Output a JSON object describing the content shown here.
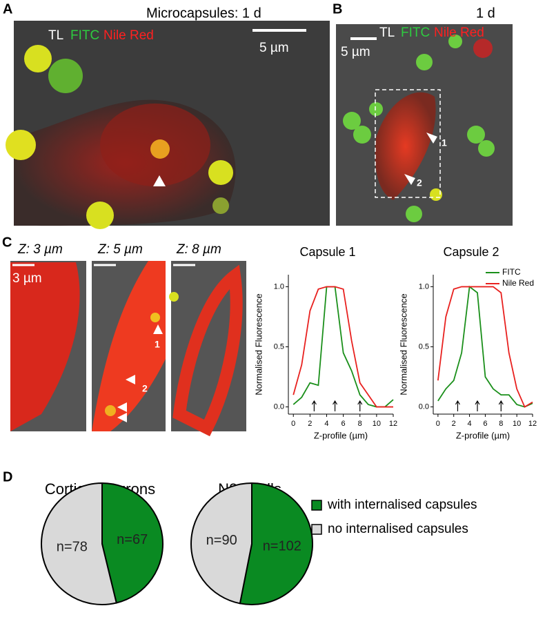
{
  "panels": {
    "A": {
      "letter": "A",
      "title": "Microcapsules: 1 d",
      "channels": [
        "TL",
        "FITC",
        "Nile Red"
      ],
      "scale": "5 µm"
    },
    "B": {
      "letter": "B",
      "title": "1 d",
      "channels": [
        "TL",
        "FITC",
        "Nile Red"
      ],
      "scale": "5 µm",
      "markers": [
        "1",
        "2"
      ]
    },
    "C": {
      "letter": "C",
      "slices": [
        "Z: 3 µm",
        "Z: 5 µm",
        "Z: 8 µm"
      ],
      "scale": "3 µm",
      "markers": [
        "1",
        "2"
      ]
    },
    "D": {
      "letter": "D"
    }
  },
  "chart_data": [
    {
      "type": "line",
      "title": "Capsule 1",
      "x_label": "Z-profile (µm)",
      "y_label": "Normalised Fluorescence",
      "x": [
        0,
        1,
        2,
        3,
        4,
        5,
        6,
        7,
        8,
        9,
        10,
        11,
        12
      ],
      "series": [
        {
          "name": "FITC",
          "color": "#1a8f1a",
          "values": [
            0.02,
            0.08,
            0.2,
            0.18,
            1.0,
            1.0,
            0.45,
            0.3,
            0.1,
            0.02,
            0.0,
            0.0,
            0.06
          ]
        },
        {
          "name": "Nile Red",
          "color": "#e8201e",
          "values": [
            0.1,
            0.35,
            0.8,
            0.98,
            1.0,
            1.0,
            0.98,
            0.55,
            0.2,
            0.1,
            0.0,
            0.0,
            0.0
          ]
        }
      ],
      "arrows": [
        2.5,
        5,
        8
      ],
      "xlim": [
        -0.6,
        12
      ],
      "ylim": [
        -0.06,
        1.1
      ],
      "xticks": [
        0,
        2,
        4,
        6,
        8,
        10,
        12
      ],
      "yticks": [
        {
          "value": 0,
          "label": "0.0"
        },
        {
          "value": 0.5,
          "label": "0.5"
        },
        {
          "value": 1,
          "label": "1.0"
        }
      ],
      "legend": false
    },
    {
      "type": "line",
      "title": "Capsule 2",
      "x_label": "Z-profile (µm)",
      "y_label": "Normalised Fluorescence",
      "x": [
        0,
        1,
        2,
        3,
        4,
        5,
        6,
        7,
        8,
        9,
        10,
        11,
        12
      ],
      "series": [
        {
          "name": "FITC",
          "color": "#1a8f1a",
          "values": [
            0.05,
            0.15,
            0.22,
            0.45,
            1.0,
            0.95,
            0.25,
            0.15,
            0.1,
            0.1,
            0.02,
            0.0,
            0.03
          ]
        },
        {
          "name": "Nile Red",
          "color": "#e8201e",
          "values": [
            0.22,
            0.75,
            0.98,
            1.0,
            1.0,
            1.0,
            1.0,
            1.0,
            0.95,
            0.45,
            0.15,
            0.0,
            0.04
          ]
        }
      ],
      "arrows": [
        2.5,
        5,
        8
      ],
      "xlim": [
        -0.6,
        12
      ],
      "ylim": [
        -0.06,
        1.1
      ],
      "xticks": [
        0,
        2,
        4,
        6,
        8,
        10,
        12
      ],
      "yticks": [
        {
          "value": 0,
          "label": "0.0"
        },
        {
          "value": 0.5,
          "label": "0.5"
        },
        {
          "value": 1,
          "label": "1.0"
        }
      ],
      "legend": true
    },
    {
      "type": "pie",
      "title": "Cortical neurons",
      "categories": [
        "with internalised capsules",
        "no internalised capsules"
      ],
      "values": [
        67,
        78
      ],
      "value_labels": [
        "n=67",
        "n=78"
      ],
      "colors": [
        "#0a8a22",
        "#d9d9d9"
      ],
      "legend": false
    },
    {
      "type": "pie",
      "title": "N2A cells",
      "categories": [
        "with internalised capsules",
        "no internalised capsules"
      ],
      "values": [
        102,
        90
      ],
      "value_labels": [
        "n=102",
        "n=90"
      ],
      "colors": [
        "#0a8a22",
        "#d9d9d9"
      ],
      "legend": true
    }
  ]
}
